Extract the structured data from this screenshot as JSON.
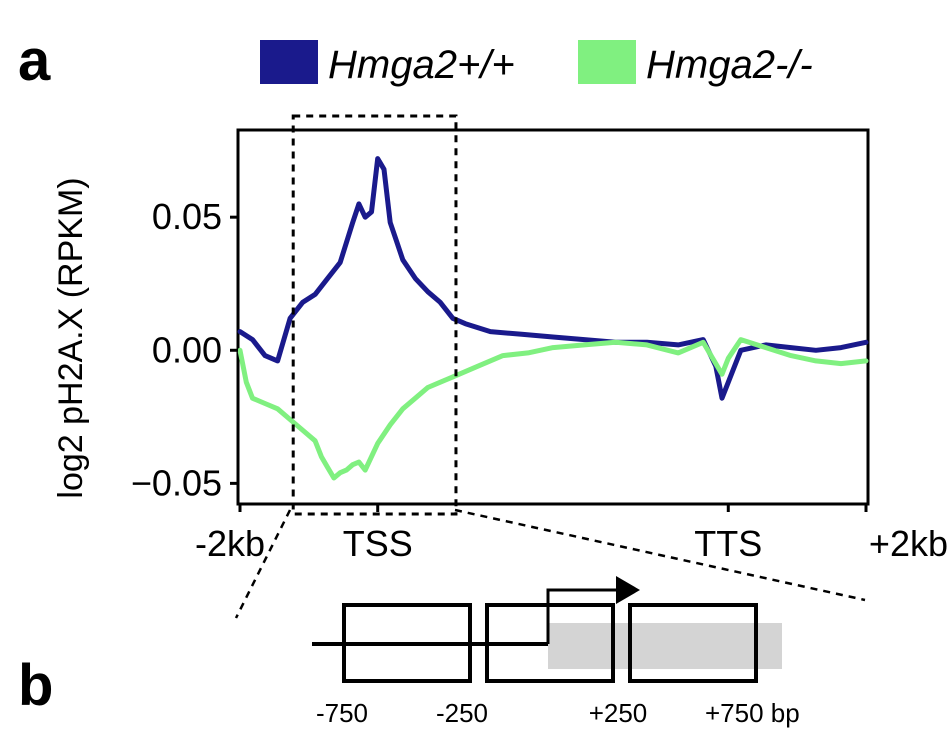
{
  "panels": {
    "a": "a",
    "b": "b"
  },
  "chart_data": {
    "type": "line",
    "title": "",
    "xlabel": "",
    "ylabel": "log2 pH2A.X (RPKM)",
    "xlim": [
      0,
      100
    ],
    "ylim": [
      -0.057,
      0.082
    ],
    "grid": false,
    "legend_position": "top",
    "x_tick_labels": [
      {
        "label": "-2kb",
        "x": 0
      },
      {
        "label": "TSS",
        "x": 22
      },
      {
        "label": "TTS",
        "x": 78
      },
      {
        "label": "+2kb",
        "x": 100
      }
    ],
    "y_tick_labels": [
      {
        "label": "−0.05",
        "y": -0.05
      },
      {
        "label": "0.00",
        "y": 0.0
      },
      {
        "label": "0.05",
        "y": 0.05
      }
    ],
    "highlight_box_x": [
      8.5,
      34.5
    ],
    "series": [
      {
        "name": "Hmga2+/+",
        "color": "#1a1a8c",
        "x": [
          0,
          2,
          4,
          6,
          8,
          10,
          12,
          14,
          16,
          18,
          19,
          20,
          21,
          22,
          23,
          24,
          25,
          26,
          28,
          30,
          32,
          34,
          36,
          40,
          45,
          50,
          55,
          60,
          65,
          70,
          74,
          76,
          77,
          78,
          80,
          84,
          88,
          92,
          96,
          100
        ],
        "y": [
          0.007,
          0.004,
          -0.002,
          -0.004,
          0.012,
          0.018,
          0.021,
          0.027,
          0.033,
          0.048,
          0.055,
          0.05,
          0.052,
          0.072,
          0.068,
          0.048,
          0.041,
          0.034,
          0.027,
          0.022,
          0.018,
          0.012,
          0.01,
          0.007,
          0.006,
          0.005,
          0.004,
          0.003,
          0.003,
          0.002,
          0.004,
          -0.006,
          -0.018,
          -0.012,
          0.0,
          0.002,
          0.001,
          0.0,
          0.001,
          0.003
        ]
      },
      {
        "name": "Hmga2-/-",
        "color": "#80f080",
        "x": [
          0,
          1,
          2,
          4,
          6,
          8,
          10,
          12,
          13,
          14,
          15,
          16,
          17,
          18,
          19,
          20,
          22,
          24,
          26,
          28,
          30,
          34,
          38,
          42,
          46,
          50,
          55,
          60,
          65,
          70,
          74,
          76,
          77,
          78,
          80,
          84,
          88,
          92,
          96,
          100
        ],
        "y": [
          0.0,
          -0.012,
          -0.018,
          -0.02,
          -0.022,
          -0.026,
          -0.03,
          -0.034,
          -0.04,
          -0.044,
          -0.048,
          -0.046,
          -0.045,
          -0.043,
          -0.042,
          -0.045,
          -0.035,
          -0.028,
          -0.022,
          -0.018,
          -0.014,
          -0.01,
          -0.006,
          -0.002,
          -0.001,
          0.001,
          0.002,
          0.003,
          0.002,
          -0.001,
          0.003,
          -0.005,
          -0.009,
          -0.003,
          0.004,
          0.001,
          -0.002,
          -0.004,
          -0.005,
          -0.004
        ]
      }
    ]
  },
  "gene_diagram": {
    "tick_labels": [
      "-750",
      "-250",
      "+250",
      "+750 bp"
    ]
  }
}
